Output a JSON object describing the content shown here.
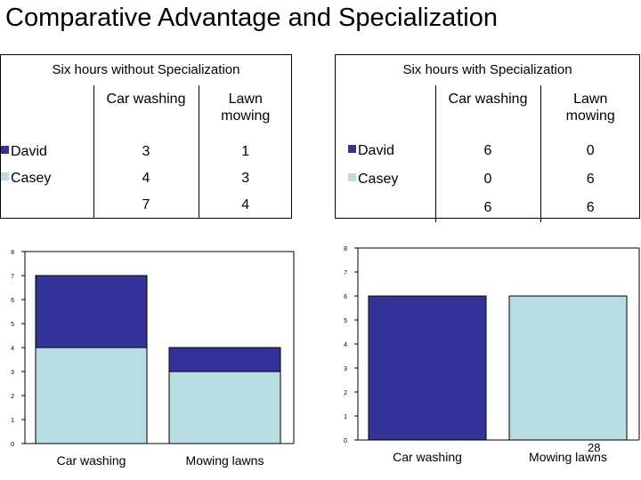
{
  "title": "Comparative Advantage and Specialization",
  "colors": {
    "david": "#333399",
    "casey": "#b7dde3"
  },
  "page_number": "28",
  "tables": [
    {
      "title": "Six hours without Specialization",
      "columns": [
        "Car washing",
        "Lawn\nmowing"
      ],
      "rows": [
        {
          "label": "David",
          "values": [
            "3",
            "1"
          ]
        },
        {
          "label": "Casey",
          "values": [
            "4",
            "3"
          ]
        },
        {
          "label": "",
          "values": [
            "7",
            "4"
          ]
        }
      ]
    },
    {
      "title": "Six hours with Specialization",
      "columns": [
        "Car washing",
        "Lawn\nmowing"
      ],
      "rows": [
        {
          "label": "David",
          "values": [
            "6",
            "0"
          ]
        },
        {
          "label": "Casey",
          "values": [
            "0",
            "6"
          ]
        },
        {
          "label": "",
          "values": [
            "6",
            "6"
          ]
        }
      ]
    }
  ],
  "chart_data": [
    {
      "type": "bar",
      "stacked": true,
      "categories": [
        "Car washing",
        "Mowing lawns"
      ],
      "series": [
        {
          "name": "Casey",
          "values": [
            4,
            3
          ]
        },
        {
          "name": "David",
          "values": [
            3,
            1
          ]
        }
      ],
      "ylim": [
        0,
        8
      ],
      "yticks": [
        "0",
        "1",
        "2",
        "3",
        "4",
        "5",
        "6",
        "7",
        "8"
      ],
      "grid": false
    },
    {
      "type": "bar",
      "stacked": true,
      "categories": [
        "Car washing",
        "Mowing lawns"
      ],
      "series": [
        {
          "name": "Casey",
          "values": [
            0,
            6
          ]
        },
        {
          "name": "David",
          "values": [
            6,
            0
          ]
        }
      ],
      "ylim": [
        0,
        8
      ],
      "yticks": [
        "0",
        "1",
        "2",
        "3",
        "4",
        "5",
        "6",
        "7",
        "8"
      ],
      "grid": false
    }
  ]
}
